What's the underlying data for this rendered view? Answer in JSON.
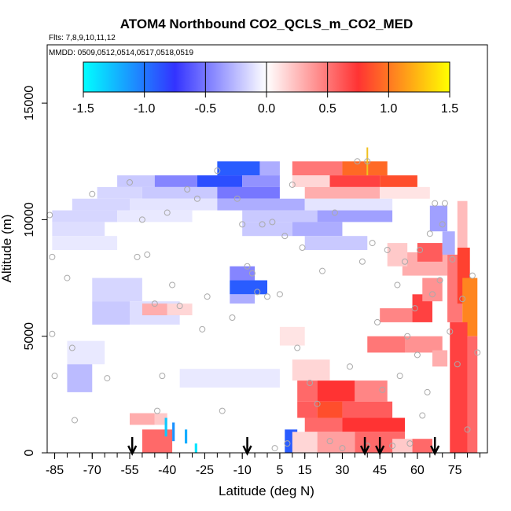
{
  "chart_data": {
    "type": "heatmap",
    "title": "ATOM4 Northbound CO2_QCLS_m_CO2_MED",
    "subtitle": "Flts: 7,8,9,10,11,12",
    "note": "MMDD: 0509,0512,0514,0517,0518,0519",
    "xlabel": "Latitude (deg N)",
    "ylabel": "Altitude (m)",
    "xlim": [
      -88,
      88
    ],
    "ylim": [
      0,
      17500
    ],
    "xticks": [
      -85,
      -70,
      -55,
      -40,
      -25,
      -10,
      5,
      15,
      30,
      45,
      60,
      75
    ],
    "yticks": [
      0,
      5000,
      10000,
      15000
    ],
    "colorbar": {
      "ticks": [
        -1.5,
        -1.0,
        -0.5,
        0.0,
        0.5,
        1.0,
        1.5
      ],
      "range": [
        -1.5,
        1.5
      ],
      "colors": [
        "#00ffff",
        "#3333ff",
        "#ffffff",
        "#ff3333",
        "#ffff00"
      ]
    },
    "cells": [
      {
        "lat": [
          -20,
          -3
        ],
        "alt": [
          11900,
          12500
        ],
        "value": -0.9
      },
      {
        "lat": [
          -3,
          5
        ],
        "alt": [
          11900,
          12500
        ],
        "value": -0.3
      },
      {
        "lat": [
          10,
          30
        ],
        "alt": [
          11900,
          12500
        ],
        "value": 0.5
      },
      {
        "lat": [
          30,
          48
        ],
        "alt": [
          11900,
          12500
        ],
        "value": 0.95
      },
      {
        "lat": [
          -60,
          -45
        ],
        "alt": [
          11400,
          11900
        ],
        "value": -0.2
      },
      {
        "lat": [
          -45,
          -28
        ],
        "alt": [
          11400,
          11900
        ],
        "value": -0.45
      },
      {
        "lat": [
          -28,
          -10
        ],
        "alt": [
          11400,
          11900
        ],
        "value": -0.85
      },
      {
        "lat": [
          -10,
          5
        ],
        "alt": [
          11400,
          11900
        ],
        "value": -0.4
      },
      {
        "lat": [
          10,
          25
        ],
        "alt": [
          11400,
          11900
        ],
        "value": 0.15
      },
      {
        "lat": [
          25,
          45
        ],
        "alt": [
          11400,
          11900
        ],
        "value": 0.7
      },
      {
        "lat": [
          45,
          60
        ],
        "alt": [
          11400,
          11900
        ],
        "value": 0.85
      },
      {
        "lat": [
          -68,
          -50
        ],
        "alt": [
          10900,
          11400
        ],
        "value": -0.15
      },
      {
        "lat": [
          -50,
          -20
        ],
        "alt": [
          10900,
          11400
        ],
        "value": -0.2
      },
      {
        "lat": [
          -20,
          5
        ],
        "alt": [
          10900,
          11400
        ],
        "value": -0.5
      },
      {
        "lat": [
          15,
          45
        ],
        "alt": [
          10900,
          11400
        ],
        "value": 0.3
      },
      {
        "lat": [
          45,
          65
        ],
        "alt": [
          10900,
          11400
        ],
        "value": 0.1
      },
      {
        "lat": [
          -78,
          -55
        ],
        "alt": [
          10400,
          10900
        ],
        "value": -0.15
      },
      {
        "lat": [
          -55,
          -20
        ],
        "alt": [
          10400,
          10900
        ],
        "value": -0.1
      },
      {
        "lat": [
          -20,
          15
        ],
        "alt": [
          10400,
          10900
        ],
        "value": -0.3
      },
      {
        "lat": [
          15,
          50
        ],
        "alt": [
          10400,
          10900
        ],
        "value": -0.1
      },
      {
        "lat": [
          -86,
          -60
        ],
        "alt": [
          9900,
          10400
        ],
        "value": -0.15
      },
      {
        "lat": [
          -60,
          -30
        ],
        "alt": [
          9900,
          10400
        ],
        "value": -0.08
      },
      {
        "lat": [
          -10,
          20
        ],
        "alt": [
          9900,
          10400
        ],
        "value": -0.2
      },
      {
        "lat": [
          20,
          50
        ],
        "alt": [
          9900,
          10400
        ],
        "value": -0.35
      },
      {
        "lat": [
          -86,
          -65
        ],
        "alt": [
          9300,
          9900
        ],
        "value": -0.12
      },
      {
        "lat": [
          -10,
          10
        ],
        "alt": [
          9300,
          9900
        ],
        "value": -0.2
      },
      {
        "lat": [
          10,
          30
        ],
        "alt": [
          9300,
          9900
        ],
        "value": -0.3
      },
      {
        "lat": [
          -86,
          -60
        ],
        "alt": [
          8700,
          9300
        ],
        "value": -0.08
      },
      {
        "lat": [
          15,
          40
        ],
        "alt": [
          8700,
          9300
        ],
        "value": -0.2
      },
      {
        "lat": [
          -15,
          -5
        ],
        "alt": [
          7400,
          8000
        ],
        "value": -0.45
      },
      {
        "lat": [
          -15,
          0
        ],
        "alt": [
          6800,
          7400
        ],
        "value": -0.9
      },
      {
        "lat": [
          -15,
          -5
        ],
        "alt": [
          6400,
          6800
        ],
        "value": -0.3
      },
      {
        "lat": [
          -70,
          -50
        ],
        "alt": [
          6500,
          7500
        ],
        "value": -0.15
      },
      {
        "lat": [
          -70,
          -55
        ],
        "alt": [
          5500,
          6500
        ],
        "value": -0.2
      },
      {
        "lat": [
          -55,
          -35
        ],
        "alt": [
          5500,
          6500
        ],
        "value": -0.12
      },
      {
        "lat": [
          -50,
          -40
        ],
        "alt": [
          5900,
          6400
        ],
        "value": 0.3
      },
      {
        "lat": [
          -40,
          -30
        ],
        "alt": [
          5900,
          6400
        ],
        "value": 0.15
      },
      {
        "lat": [
          -80,
          -65
        ],
        "alt": [
          3800,
          4800
        ],
        "value": -0.08
      },
      {
        "lat": [
          -80,
          -70
        ],
        "alt": [
          2600,
          3800
        ],
        "value": -0.25
      },
      {
        "lat": [
          -35,
          5
        ],
        "alt": [
          2800,
          3600
        ],
        "value": -0.08
      },
      {
        "lat": [
          5,
          15
        ],
        "alt": [
          4600,
          5400
        ],
        "value": 0.1
      },
      {
        "lat": [
          -55,
          -45
        ],
        "alt": [
          1200,
          1700
        ],
        "value": 0.3
      },
      {
        "lat": [
          -45,
          -40
        ],
        "alt": [
          1200,
          1700
        ],
        "value": 0.2
      },
      {
        "lat": [
          -50,
          -38
        ],
        "alt": [
          0,
          1000
        ],
        "value": 0.55
      },
      {
        "lat": [
          -41,
          -40
        ],
        "alt": [
          700,
          1500
        ],
        "value": -1.3
      },
      {
        "lat": [
          -38,
          -37
        ],
        "alt": [
          500,
          1300
        ],
        "value": -1.1
      },
      {
        "lat": [
          -33,
          -32
        ],
        "alt": [
          400,
          1000
        ],
        "value": -1.2
      },
      {
        "lat": [
          -29,
          -28
        ],
        "alt": [
          0,
          400
        ],
        "value": -1.4
      },
      {
        "lat": [
          7,
          12
        ],
        "alt": [
          0,
          1000
        ],
        "value": -0.9
      },
      {
        "lat": [
          12,
          20
        ],
        "alt": [
          2200,
          3100
        ],
        "value": 0.55
      },
      {
        "lat": [
          20,
          35
        ],
        "alt": [
          2200,
          3100
        ],
        "value": 0.75
      },
      {
        "lat": [
          35,
          48
        ],
        "alt": [
          2200,
          3100
        ],
        "value": 0.45
      },
      {
        "lat": [
          12,
          20
        ],
        "alt": [
          1500,
          2200
        ],
        "value": 0.6
      },
      {
        "lat": [
          20,
          30
        ],
        "alt": [
          1500,
          2200
        ],
        "value": 0.85
      },
      {
        "lat": [
          30,
          50
        ],
        "alt": [
          1500,
          2200
        ],
        "value": 0.6
      },
      {
        "lat": [
          15,
          30
        ],
        "alt": [
          900,
          1500
        ],
        "value": 0.55
      },
      {
        "lat": [
          30,
          55
        ],
        "alt": [
          900,
          1500
        ],
        "value": 0.75
      },
      {
        "lat": [
          10,
          20
        ],
        "alt": [
          0,
          900
        ],
        "value": 0.15
      },
      {
        "lat": [
          20,
          35
        ],
        "alt": [
          0,
          900
        ],
        "value": 0.35
      },
      {
        "lat": [
          35,
          55
        ],
        "alt": [
          0,
          900
        ],
        "value": 0.55
      },
      {
        "lat": [
          10,
          25
        ],
        "alt": [
          3100,
          4000
        ],
        "value": 0.15
      },
      {
        "lat": [
          40,
          55
        ],
        "alt": [
          4300,
          5000
        ],
        "value": 0.5
      },
      {
        "lat": [
          55,
          70
        ],
        "alt": [
          4300,
          5000
        ],
        "value": 0.4
      },
      {
        "lat": [
          45,
          58
        ],
        "alt": [
          5600,
          6200
        ],
        "value": 0.45
      },
      {
        "lat": [
          58,
          66
        ],
        "alt": [
          5600,
          6800
        ],
        "value": 0.7
      },
      {
        "lat": [
          66,
          72
        ],
        "alt": [
          3700,
          4400
        ],
        "value": 0.3
      },
      {
        "lat": [
          54,
          72
        ],
        "alt": [
          7600,
          8600
        ],
        "value": 0.3
      },
      {
        "lat": [
          60,
          70
        ],
        "alt": [
          8200,
          9000
        ],
        "value": 0.6
      },
      {
        "lat": [
          48,
          56
        ],
        "alt": [
          8000,
          9000
        ],
        "value": 0.2
      },
      {
        "lat": [
          58,
          66
        ],
        "alt": [
          0,
          600
        ],
        "value": 0.55
      },
      {
        "lat": [
          50,
          58
        ],
        "alt": [
          0,
          600
        ],
        "value": 0.2
      },
      {
        "lat": [
          65,
          72
        ],
        "alt": [
          9500,
          10600
        ],
        "value": -0.35
      },
      {
        "lat": [
          70,
          75
        ],
        "alt": [
          8500,
          9500
        ],
        "value": -0.3
      },
      {
        "lat": [
          72,
          78
        ],
        "alt": [
          5600,
          8500
        ],
        "value": 0.5
      },
      {
        "lat": [
          76,
          81
        ],
        "alt": [
          6400,
          8800
        ],
        "value": 0.8
      },
      {
        "lat": [
          78,
          84
        ],
        "alt": [
          5000,
          7500
        ],
        "value": 1.05
      },
      {
        "lat": [
          73,
          80
        ],
        "alt": [
          0,
          5600
        ],
        "value": 0.7
      },
      {
        "lat": [
          80,
          84
        ],
        "alt": [
          0,
          5000
        ],
        "value": 0.55
      },
      {
        "lat": [
          76,
          80
        ],
        "alt": [
          8800,
          10800
        ],
        "value": 0.25
      },
      {
        "lat": [
          62,
          70
        ],
        "alt": [
          6500,
          7500
        ],
        "value": 0.4
      }
    ],
    "points": [
      {
        "lat": -87,
        "alt": 10200
      },
      {
        "lat": -86,
        "alt": 8400
      },
      {
        "lat": -86,
        "alt": 5100
      },
      {
        "lat": -85,
        "alt": 3300
      },
      {
        "lat": -80,
        "alt": 7500
      },
      {
        "lat": -78,
        "alt": 4500
      },
      {
        "lat": -77,
        "alt": 1400
      },
      {
        "lat": -70,
        "alt": 11100
      },
      {
        "lat": -64,
        "alt": 3200
      },
      {
        "lat": -55,
        "alt": 11600
      },
      {
        "lat": -52,
        "alt": 8400
      },
      {
        "lat": -50,
        "alt": 10000
      },
      {
        "lat": -48,
        "alt": 8500
      },
      {
        "lat": -45,
        "alt": 6400
      },
      {
        "lat": -44,
        "alt": 1800
      },
      {
        "lat": -42,
        "alt": 3300
      },
      {
        "lat": -40,
        "alt": 10300
      },
      {
        "lat": -38,
        "alt": 7200
      },
      {
        "lat": -35,
        "alt": 6300
      },
      {
        "lat": -32,
        "alt": 11300
      },
      {
        "lat": -28,
        "alt": 10900
      },
      {
        "lat": -26,
        "alt": 5300
      },
      {
        "lat": -24,
        "alt": 6700
      },
      {
        "lat": -20,
        "alt": 12100
      },
      {
        "lat": -18,
        "alt": 1800
      },
      {
        "lat": -14,
        "alt": 5800
      },
      {
        "lat": -12,
        "alt": 10900
      },
      {
        "lat": -10,
        "alt": 9800
      },
      {
        "lat": -8,
        "alt": 8000
      },
      {
        "lat": -6,
        "alt": 7700
      },
      {
        "lat": -4,
        "alt": 6900
      },
      {
        "lat": -2,
        "alt": 9800
      },
      {
        "lat": 0,
        "alt": 6700
      },
      {
        "lat": 2,
        "alt": 9900
      },
      {
        "lat": 3,
        "alt": 200
      },
      {
        "lat": 5,
        "alt": 6800
      },
      {
        "lat": 7,
        "alt": 9300
      },
      {
        "lat": 8,
        "alt": 400
      },
      {
        "lat": 10,
        "alt": 11500
      },
      {
        "lat": 12,
        "alt": 4500
      },
      {
        "lat": 14,
        "alt": 8800
      },
      {
        "lat": 17,
        "alt": 3000
      },
      {
        "lat": 20,
        "alt": 2100
      },
      {
        "lat": 22,
        "alt": 7800
      },
      {
        "lat": 25,
        "alt": 500
      },
      {
        "lat": 27,
        "alt": 10300
      },
      {
        "lat": 30,
        "alt": 200
      },
      {
        "lat": 33,
        "alt": 3700
      },
      {
        "lat": 36,
        "alt": 12500
      },
      {
        "lat": 38,
        "alt": 8200
      },
      {
        "lat": 40,
        "alt": 300
      },
      {
        "lat": 42,
        "alt": 9000
      },
      {
        "lat": 44,
        "alt": 5600
      },
      {
        "lat": 46,
        "alt": 2700
      },
      {
        "lat": 48,
        "alt": 8700
      },
      {
        "lat": 50,
        "alt": 300
      },
      {
        "lat": 52,
        "alt": 7200
      },
      {
        "lat": 53,
        "alt": 3300
      },
      {
        "lat": 55,
        "alt": 8200
      },
      {
        "lat": 56,
        "alt": 5000
      },
      {
        "lat": 57,
        "alt": 400
      },
      {
        "lat": 59,
        "alt": 6200
      },
      {
        "lat": 60,
        "alt": 4200
      },
      {
        "lat": 61,
        "alt": 8700
      },
      {
        "lat": 62,
        "alt": 1600
      },
      {
        "lat": 64,
        "alt": 2600
      },
      {
        "lat": 65,
        "alt": 9400
      },
      {
        "lat": 66,
        "alt": 6800
      },
      {
        "lat": 67,
        "alt": 10700
      },
      {
        "lat": 69,
        "alt": 7400
      },
      {
        "lat": 70,
        "alt": 9800
      },
      {
        "lat": 71,
        "alt": 10700
      },
      {
        "lat": 73,
        "alt": 5200
      },
      {
        "lat": 74,
        "alt": 8300
      },
      {
        "lat": 76,
        "alt": 3800
      },
      {
        "lat": 78,
        "alt": 6600
      },
      {
        "lat": 80,
        "alt": 1000
      },
      {
        "lat": 82,
        "alt": 7600
      },
      {
        "lat": 84,
        "alt": 4300
      }
    ],
    "arrows_lat": [
      -54,
      -8,
      39,
      45,
      67
    ],
    "marker": {
      "lat": 40,
      "alt": 12500,
      "error": 600
    }
  }
}
